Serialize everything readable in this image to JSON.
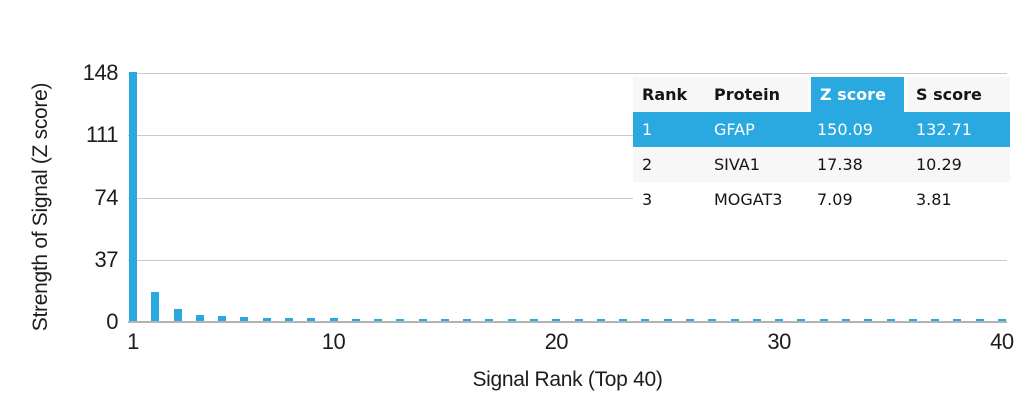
{
  "chart_data": {
    "type": "bar",
    "title": "",
    "xlabel": "Signal Rank (Top 40)",
    "ylabel": "Strength of Signal (Z score)",
    "x_ticks": [
      1,
      10,
      20,
      30,
      40
    ],
    "y_ticks": [
      "148",
      "111",
      "74",
      "37",
      "0"
    ],
    "y_tick_values": [
      148,
      111,
      74,
      37,
      0
    ],
    "xlim": [
      1,
      40
    ],
    "ylim": [
      0,
      148
    ],
    "grid": "horizontal",
    "legend": "none",
    "bar_color": "#29a9df",
    "x": [
      1,
      2,
      3,
      4,
      5,
      6,
      7,
      8,
      9,
      10,
      11,
      12,
      13,
      14,
      15,
      16,
      17,
      18,
      19,
      20,
      21,
      22,
      23,
      24,
      25,
      26,
      27,
      28,
      29,
      30,
      31,
      32,
      33,
      34,
      35,
      36,
      37,
      38,
      39,
      40
    ],
    "values": [
      150.09,
      17.38,
      7.09,
      3.4,
      3.0,
      2.3,
      1.9,
      1.7,
      1.6,
      1.5,
      1.45,
      1.4,
      1.35,
      1.3,
      1.3,
      1.25,
      1.25,
      1.2,
      1.2,
      1.15,
      1.15,
      1.1,
      1.1,
      1.1,
      1.05,
      1.05,
      1.0,
      1.0,
      1.0,
      1.0,
      0.95,
      0.95,
      0.95,
      0.95,
      0.9,
      0.9,
      0.9,
      0.9,
      0.9,
      0.9
    ],
    "note": "First bar (150.09) is clipped at the 148 axis maximum"
  },
  "table": {
    "headers": [
      "Rank",
      "Protein",
      "Z score",
      "S score"
    ],
    "highlighted_header": "Z score",
    "rows": [
      {
        "rank": "1",
        "protein": "GFAP",
        "z": "150.09",
        "s": "132.71",
        "highlighted": true
      },
      {
        "rank": "2",
        "protein": "SIVA1",
        "z": "17.38",
        "s": "10.29",
        "highlighted": false
      },
      {
        "rank": "3",
        "protein": "MOGAT3",
        "z": "7.09",
        "s": "3.81",
        "highlighted": false
      }
    ]
  },
  "colors": {
    "accent_blue": "#29a9df",
    "gridline": "#cacaca",
    "axis_line": "#b3b3b3",
    "table_header_bg": "#f7f7f7",
    "table_alt_row_bg": "#f7f7f7",
    "text": "#1c1c1c",
    "background": "#ffffff"
  }
}
